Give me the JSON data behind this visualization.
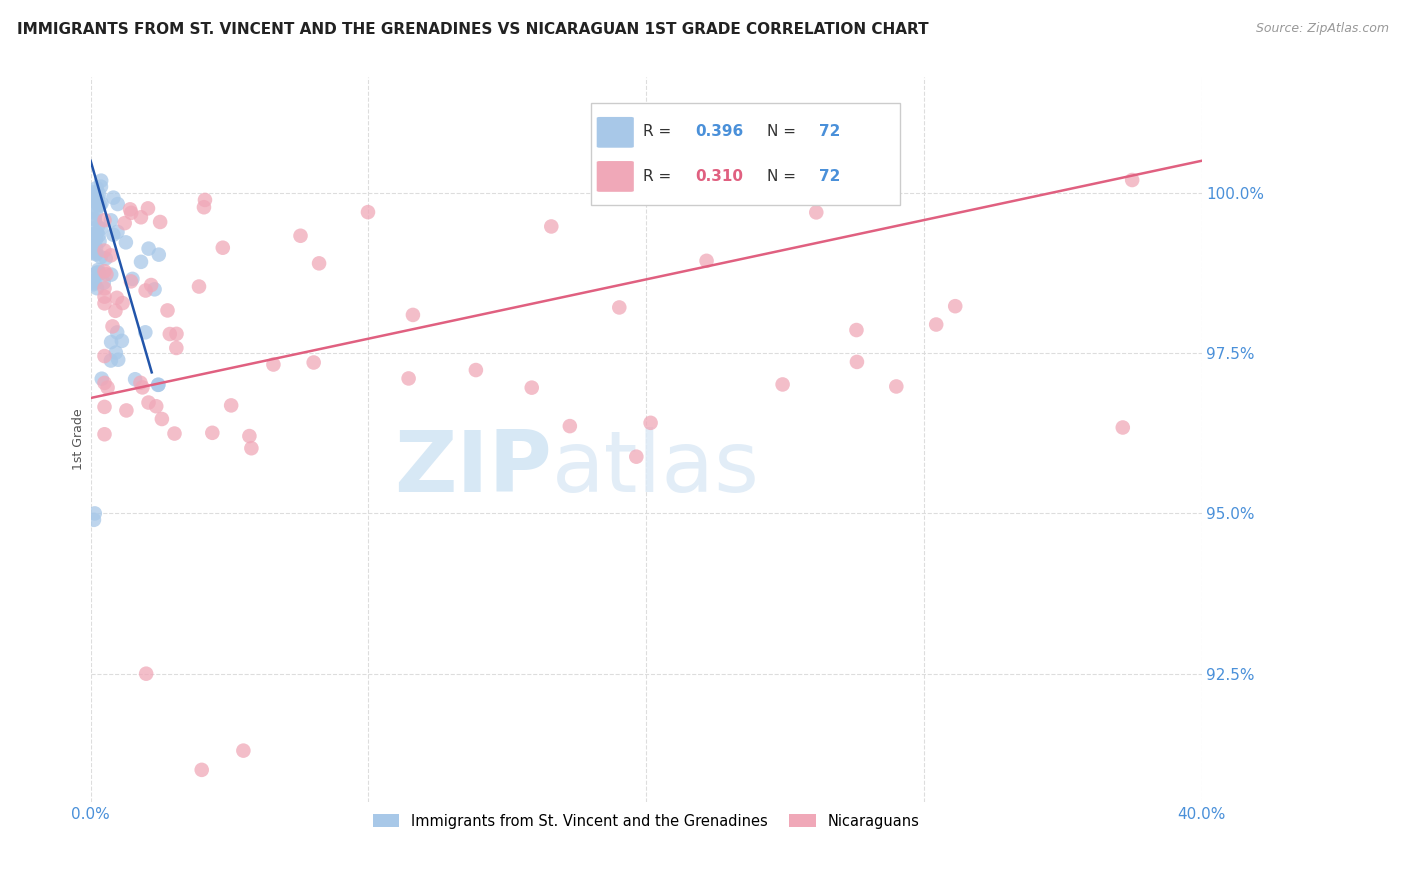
{
  "title": "IMMIGRANTS FROM ST. VINCENT AND THE GRENADINES VS NICARAGUAN 1ST GRADE CORRELATION CHART",
  "source": "Source: ZipAtlas.com",
  "ylabel": "1st Grade",
  "yticks": [
    92.5,
    95.0,
    97.5,
    100.0
  ],
  "xlim": [
    0.0,
    40.0
  ],
  "ylim": [
    90.5,
    101.8
  ],
  "blue_R": 0.396,
  "blue_N": 72,
  "pink_R": 0.31,
  "pink_N": 72,
  "legend_label_blue": "Immigrants from St. Vincent and the Grenadines",
  "legend_label_pink": "Nicaraguans",
  "blue_color": "#a8c8e8",
  "pink_color": "#f0a8b8",
  "blue_line_color": "#2255aa",
  "pink_line_color": "#e06080",
  "title_color": "#222222",
  "axis_label_color": "#4a90d9",
  "grid_color": "#dddddd",
  "blue_line_x0": 0.0,
  "blue_line_x1": 2.2,
  "blue_line_y0": 100.5,
  "blue_line_y1": 97.2,
  "pink_line_x0": 0.0,
  "pink_line_x1": 40.0,
  "pink_line_y0": 96.8,
  "pink_line_y1": 100.5
}
